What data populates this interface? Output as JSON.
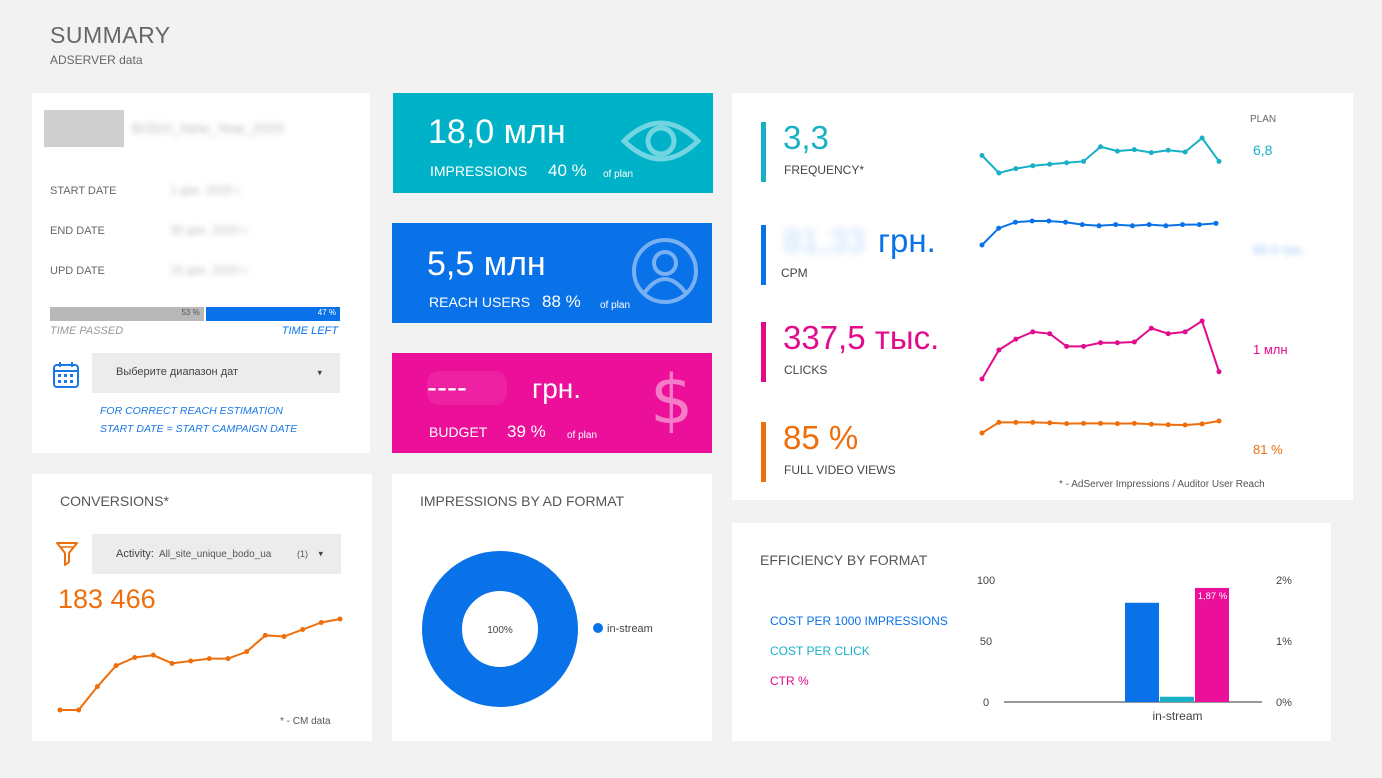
{
  "page": {
    "title": "SUMMARY",
    "subtitle": "ADSERVER data"
  },
  "campaign": {
    "name": "BODO_New_Year_2020",
    "start_label": "START DATE",
    "start_value": "1 дек. 2020 г.",
    "end_label": "END DATE",
    "end_value": "30 дек. 2020 г.",
    "upd_label": "UPD DATE",
    "upd_value": "15 дек. 2020 г.",
    "time_passed_pct": "53 %",
    "time_left_pct": "47 %",
    "time_passed_fraction": 0.53,
    "time_passed_label": "TIME PASSED",
    "time_left_label": "TIME LEFT",
    "date_picker": "Выберите диапазон дат",
    "note_line1": "FOR CORRECT REACH ESTIMATION",
    "note_line2": "START DATE = START CAMPAIGN DATE"
  },
  "kpis": {
    "impressions": {
      "value": "18,0 млн",
      "label": "IMPRESSIONS",
      "pct": "40 %",
      "of_plan": "of plan",
      "color": "#00b2c8",
      "icon": "eye-icon"
    },
    "reach": {
      "value": "5,5 млн",
      "label": "REACH USERS",
      "pct": "88 %",
      "of_plan": "of plan",
      "color": "#0a72e8",
      "icon": "user-icon"
    },
    "budget": {
      "value": "----",
      "unit": "грн.",
      "label": "BUDGET",
      "pct": "39 %",
      "of_plan": "of plan",
      "color": "#ec0f9a",
      "icon": "dollar-icon"
    }
  },
  "metrics": {
    "plan_header": "PLAN",
    "footnote": "* - AdServer Impressions / Auditor User Reach",
    "rows": [
      {
        "key": "frequency",
        "value": "3,3",
        "label": "FREQUENCY*",
        "plan": "6,8",
        "color": "#17b0c6",
        "trend": [
          3.2,
          2.6,
          2.75,
          2.85,
          2.9,
          2.95,
          3.0,
          3.5,
          3.35,
          3.4,
          3.3,
          3.38,
          3.32,
          3.8,
          3.0
        ]
      },
      {
        "key": "cpm",
        "value": "81,33",
        "unit": "грн.",
        "label": "CPM",
        "plan": "80,0 грн.",
        "color": "#0a72e8",
        "trend": [
          60,
          74,
          79,
          80,
          80,
          79,
          77,
          76,
          77,
          76,
          77,
          76,
          77,
          77,
          78
        ]
      },
      {
        "key": "clicks",
        "value": "337,5 тыс.",
        "label": "CLICKS",
        "plan": "1 млн",
        "color": "#e20b8c",
        "trend": [
          5,
          13,
          16,
          18,
          17.5,
          14,
          14,
          15,
          15,
          15.2,
          19,
          17.5,
          18,
          21,
          7
        ]
      },
      {
        "key": "vtr",
        "value": "85 %",
        "label": "FULL VIDEO VIEWS",
        "plan": "81 %",
        "color": "#ef6e0c",
        "trend": [
          82,
          86,
          86,
          86,
          85.8,
          85.5,
          85.6,
          85.6,
          85.5,
          85.6,
          85.3,
          85.1,
          85,
          85.4,
          86.5
        ]
      }
    ]
  },
  "conversions": {
    "title": "CONVERSIONS*",
    "activity_label": "Activity:",
    "activity_value": "All_site_unique_bodo_ua",
    "activity_count": "(1)",
    "total": "183 466",
    "footnote": "* - CM data",
    "color": "#ef6e0c",
    "trend": [
      0,
      0,
      20,
      38,
      45,
      47,
      40,
      42,
      44,
      44,
      50,
      64,
      63,
      69,
      75,
      78
    ]
  },
  "chart_data": [
    {
      "type": "pie",
      "title": "IMPRESSIONS BY AD FORMAT",
      "labels": [
        "in-stream"
      ],
      "values": [
        100
      ],
      "data_labels": [
        "100%"
      ],
      "colors": [
        "#0a72e8"
      ],
      "legend": "right"
    },
    {
      "type": "bar",
      "title": "EFFICIENCY BY FORMAT",
      "categories": [
        "in-stream"
      ],
      "left_axis": {
        "ticks": [
          "100",
          "50",
          "0"
        ],
        "ylim": [
          0,
          100
        ]
      },
      "right_axis": {
        "ticks": [
          "2%",
          "1%",
          "0%"
        ],
        "ylim": [
          0,
          2
        ]
      },
      "series": [
        {
          "name": "COST PER 1000 IMPRESSIONS",
          "values": [
            81.33
          ],
          "axis": "left",
          "color": "#0a72e8"
        },
        {
          "name": "COST PER CLICK",
          "values": [
            4.3
          ],
          "axis": "left",
          "color": "#17b0c6"
        },
        {
          "name": "CTR %",
          "values": [
            1.87
          ],
          "axis": "right",
          "color": "#ec0f9a",
          "data_label": "1,87 %"
        }
      ],
      "legend": "left"
    }
  ]
}
